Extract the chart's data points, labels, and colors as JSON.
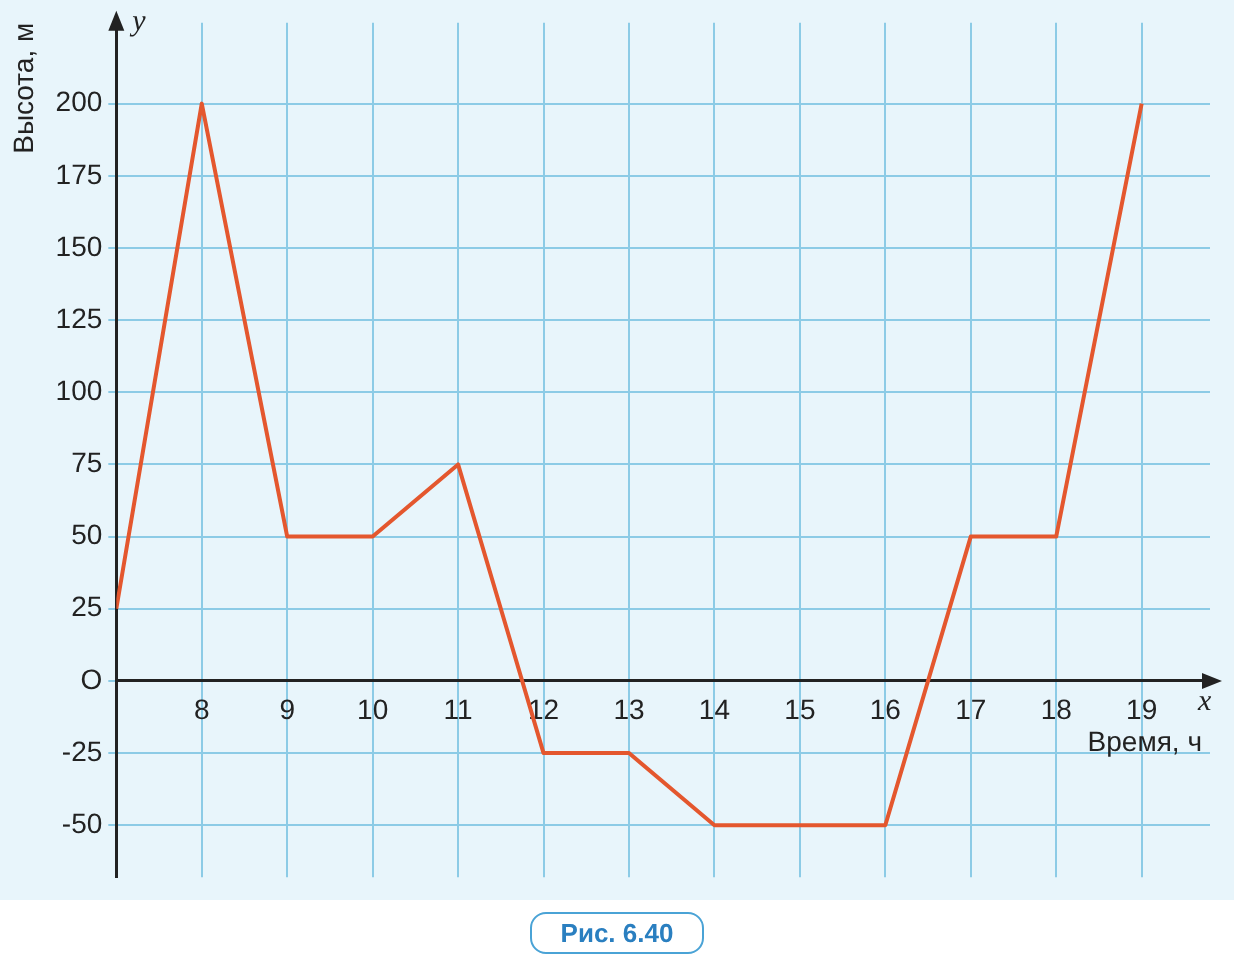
{
  "chart_data": {
    "type": "line",
    "ylabel": "Высота, м",
    "xlabel": "Время, ч",
    "annotations": [
      "x",
      "y",
      "Рис. 6.40"
    ],
    "x": [
      7,
      8,
      9,
      10,
      11,
      12,
      13,
      14,
      16,
      17,
      18,
      19
    ],
    "series": [
      {
        "color": "#e4572e",
        "values": [
          25,
          200,
          50,
          50,
          75,
          -25,
          -25,
          -50,
          -50,
          50,
          50,
          200
        ]
      }
    ],
    "xlim": [
      7,
      19.8
    ],
    "xticks": [
      {
        "value": 7,
        "label": null
      },
      8,
      9,
      10,
      11,
      12,
      13,
      14,
      15,
      16,
      17,
      18,
      19
    ],
    "ylim": [
      -68,
      228
    ],
    "yticks": [
      -50,
      -25,
      {
        "value": 0,
        "label": "O"
      },
      25,
      50,
      75,
      100,
      125,
      150,
      175,
      200
    ],
    "grid": true,
    "legend": false,
    "marker": "none",
    "line_style": "solid"
  }
}
